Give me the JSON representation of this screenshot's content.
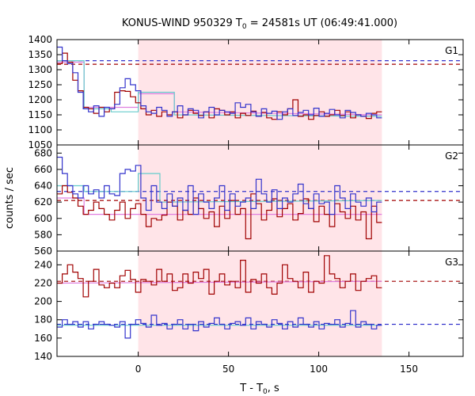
{
  "title": {
    "text": "KONUS-WIND 950329 T",
    "sub": "0",
    "rest": " = 24581s UT (06:49:41.000)"
  },
  "xlabel": {
    "text": "T - T",
    "sub": "0",
    "rest": ", s"
  },
  "ylabel": "counts / sec",
  "colors": {
    "red": "#a00000",
    "blue": "#3333cc",
    "cyan": "#66cccc",
    "pink": "#e07fe0",
    "shade": "#ffe4e8"
  },
  "chart_data": {
    "type": "line",
    "xlim": [
      -45,
      180
    ],
    "xticks": [
      0,
      50,
      100,
      150
    ],
    "shaded_interval": [
      0,
      135
    ],
    "panels": [
      {
        "label": "G1",
        "ylim": [
          1050,
          1400
        ],
        "yticks": [
          1050,
          1100,
          1150,
          1200,
          1250,
          1300,
          1350,
          1400
        ],
        "background_levels": {
          "red": 1318,
          "blue": 1330
        },
        "fit": [
          [
            -45,
            1325
          ],
          [
            -30,
            1325
          ],
          [
            -30,
            1175
          ],
          [
            -15,
            1175
          ],
          [
            0,
            1175
          ],
          [
            0,
            1220
          ],
          [
            20,
            1220
          ],
          [
            20,
            1160
          ],
          [
            135,
            1150
          ]
        ],
        "curve": [
          [
            -45,
            1330
          ],
          [
            -30,
            1330
          ],
          [
            -30,
            1170
          ],
          [
            -15,
            1170
          ],
          [
            -15,
            1160
          ],
          [
            0,
            1160
          ],
          [
            0,
            1225
          ],
          [
            20,
            1225
          ],
          [
            20,
            1150
          ],
          [
            135,
            1145
          ]
        ],
        "red": [
          1320,
          1355,
          1325,
          1265,
          1230,
          1175,
          1170,
          1155,
          1175,
          1160,
          1170,
          1225,
          1230,
          1228,
          1210,
          1190,
          1170,
          1150,
          1165,
          1145,
          1160,
          1150,
          1160,
          1140,
          1150,
          1165,
          1155,
          1148,
          1160,
          1140,
          1170,
          1165,
          1150,
          1160,
          1140,
          1155,
          1148,
          1162,
          1145,
          1158,
          1140,
          1135,
          1160,
          1150,
          1170,
          1200,
          1145,
          1150,
          1135,
          1148,
          1160,
          1145,
          1150,
          1165,
          1148,
          1160,
          1140,
          1150,
          1145,
          1138,
          1155,
          1160
        ],
        "blue": [
          1375,
          1330,
          1320,
          1290,
          1225,
          1170,
          1160,
          1180,
          1145,
          1175,
          1170,
          1185,
          1240,
          1270,
          1250,
          1230,
          1180,
          1160,
          1155,
          1175,
          1165,
          1145,
          1160,
          1180,
          1150,
          1170,
          1165,
          1140,
          1160,
          1175,
          1150,
          1165,
          1160,
          1155,
          1190,
          1175,
          1185,
          1160,
          1145,
          1170,
          1155,
          1162,
          1135,
          1160,
          1170,
          1148,
          1158,
          1165,
          1150,
          1172,
          1145,
          1155,
          1168,
          1150,
          1140,
          1165,
          1158,
          1150,
          1145,
          1155,
          1150,
          1140
        ]
      },
      {
        "label": "G2",
        "ylim": [
          560,
          690
        ],
        "yticks": [
          560,
          580,
          600,
          620,
          640,
          660,
          680
        ],
        "background_levels": {
          "red": 622,
          "blue": 633
        },
        "fit": [
          [
            -45,
            625
          ],
          [
            -30,
            625
          ],
          [
            -30,
            605
          ],
          [
            0,
            605
          ],
          [
            0,
            605
          ],
          [
            135,
            605
          ]
        ],
        "curve": [
          [
            -45,
            640
          ],
          [
            -30,
            640
          ],
          [
            -30,
            633
          ],
          [
            0,
            633
          ],
          [
            0,
            655
          ],
          [
            12,
            655
          ],
          [
            12,
            620
          ],
          [
            135,
            622
          ]
        ],
        "red": [
          630,
          640,
          632,
          625,
          615,
          605,
          610,
          620,
          612,
          605,
          598,
          610,
          620,
          600,
          612,
          618,
          605,
          590,
          600,
          598,
          604,
          620,
          615,
          598,
          610,
          605,
          625,
          612,
          600,
          608,
          590,
          615,
          600,
          622,
          605,
          612,
          575,
          630,
          618,
          598,
          610,
          624,
          602,
          612,
          618,
          598,
          606,
          624,
          612,
          596,
          615,
          605,
          590,
          618,
          608,
          600,
          615,
          598,
          608,
          575,
          615,
          595
        ],
        "blue": [
          675,
          655,
          640,
          630,
          625,
          640,
          630,
          635,
          625,
          640,
          630,
          628,
          655,
          660,
          658,
          665,
          625,
          610,
          640,
          620,
          612,
          630,
          615,
          625,
          610,
          640,
          605,
          630,
          620,
          612,
          625,
          640,
          610,
          630,
          615,
          620,
          625,
          612,
          648,
          630,
          620,
          635,
          612,
          625,
          620,
          630,
          642,
          618,
          612,
          630,
          618,
          620,
          605,
          640,
          625,
          612,
          630,
          620,
          615,
          625,
          608,
          620
        ]
      },
      {
        "label": "G3",
        "ylim": [
          140,
          255
        ],
        "yticks": [
          140,
          160,
          180,
          200,
          220,
          240
        ],
        "background_levels": {
          "red": 222,
          "blue": 175
        },
        "fit": [
          [
            -45,
            220
          ],
          [
            135,
            222
          ]
        ],
        "curve": [
          [
            -45,
            174
          ],
          [
            135,
            174
          ]
        ],
        "red": [
          220,
          230,
          240,
          232,
          225,
          205,
          222,
          235,
          218,
          215,
          220,
          215,
          228,
          234,
          224,
          210,
          224,
          222,
          218,
          235,
          222,
          230,
          212,
          215,
          230,
          220,
          232,
          225,
          235,
          208,
          222,
          230,
          218,
          222,
          215,
          245,
          210,
          224,
          220,
          230,
          215,
          208,
          220,
          240,
          225,
          222,
          215,
          232,
          210,
          222,
          220,
          250,
          230,
          225,
          215,
          222,
          230,
          212,
          222,
          225,
          228,
          215
        ],
        "blue": [
          172,
          180,
          175,
          178,
          172,
          178,
          170,
          175,
          178,
          175,
          174,
          172,
          178,
          160,
          175,
          180,
          176,
          172,
          185,
          174,
          176,
          170,
          175,
          180,
          170,
          175,
          168,
          178,
          172,
          176,
          182,
          175,
          170,
          176,
          178,
          174,
          182,
          170,
          178,
          175,
          172,
          180,
          176,
          170,
          178,
          172,
          182,
          175,
          172,
          178,
          170,
          176,
          175,
          180,
          172,
          176,
          190,
          172,
          178,
          175,
          170,
          174
        ]
      }
    ]
  }
}
